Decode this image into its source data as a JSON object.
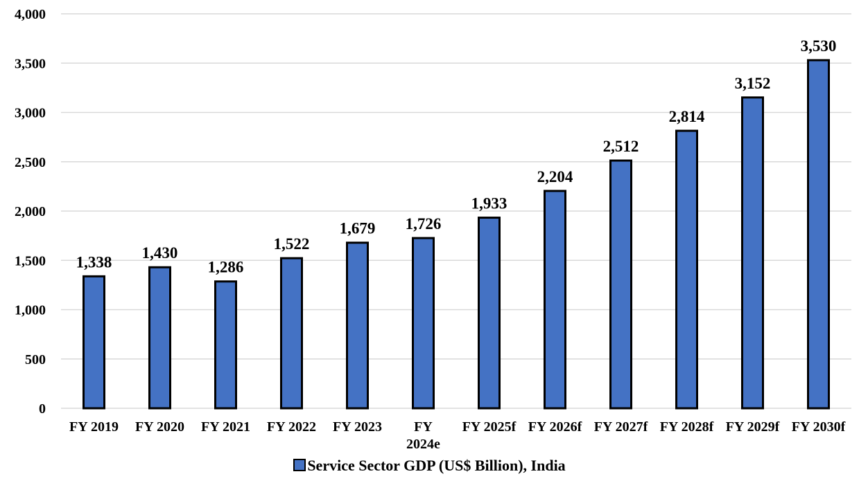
{
  "colors": {
    "bar_fill": "#4472C4",
    "bar_stroke": "#000000",
    "grid": "#d9d9d9",
    "text": "#000000"
  },
  "chart_data": {
    "type": "bar",
    "title": "",
    "xlabel": "",
    "ylabel": "",
    "categories": [
      "FY 2019",
      "FY 2020",
      "FY 2021",
      "FY 2022",
      "FY 2023",
      "FY 2024e",
      "FY 2025f",
      "FY 2026f",
      "FY 2027f",
      "FY 2028f",
      "FY 2029f",
      "FY 2030f"
    ],
    "category_lines": [
      [
        "FY 2019"
      ],
      [
        "FY 2020"
      ],
      [
        "FY 2021"
      ],
      [
        "FY 2022"
      ],
      [
        "FY 2023"
      ],
      [
        "FY",
        "2024e"
      ],
      [
        "FY 2025f"
      ],
      [
        "FY 2026f"
      ],
      [
        "FY 2027f"
      ],
      [
        "FY 2028f"
      ],
      [
        "FY 2029f"
      ],
      [
        "FY 2030f"
      ]
    ],
    "series": [
      {
        "name": "Service Sector GDP (US$ Billion), India",
        "values": [
          1338,
          1430,
          1286,
          1522,
          1679,
          1726,
          1933,
          2204,
          2512,
          2814,
          3152,
          3530
        ]
      }
    ],
    "data_labels": [
      "1,338",
      "1,430",
      "1,286",
      "1,522",
      "1,679",
      "1,726",
      "1,933",
      "2,204",
      "2,512",
      "2,814",
      "3,152",
      "3,530"
    ],
    "ylim": [
      0,
      4000
    ],
    "yticks": [
      0,
      500,
      1000,
      1500,
      2000,
      2500,
      3000,
      3500,
      4000
    ],
    "ytick_labels": [
      "0",
      "500",
      "1,000",
      "1,500",
      "2,000",
      "2,500",
      "3,000",
      "3,500",
      "4,000"
    ],
    "grid": true,
    "legend_position": "bottom"
  },
  "legend": {
    "label": "Service Sector GDP (US$ Billion), India"
  }
}
